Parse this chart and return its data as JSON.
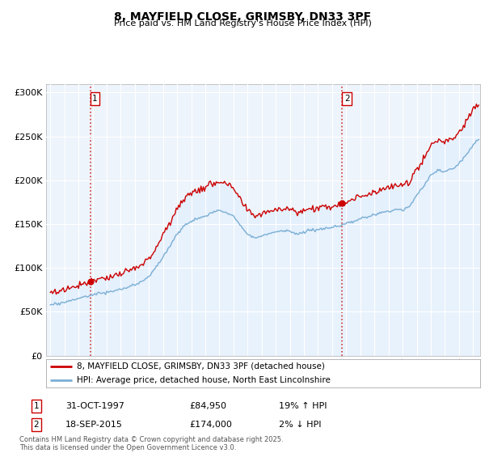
{
  "title": "8, MAYFIELD CLOSE, GRIMSBY, DN33 3PF",
  "subtitle": "Price paid vs. HM Land Registry's House Price Index (HPI)",
  "legend_line1": "8, MAYFIELD CLOSE, GRIMSBY, DN33 3PF (detached house)",
  "legend_line2": "HPI: Average price, detached house, North East Lincolnshire",
  "annotation1_label": "1",
  "annotation1_date": "31-OCT-1997",
  "annotation1_price": "£84,950",
  "annotation1_hpi": "19% ↑ HPI",
  "annotation1_year": 1997.83,
  "annotation1_value": 84950,
  "annotation2_label": "2",
  "annotation2_date": "18-SEP-2015",
  "annotation2_price": "£174,000",
  "annotation2_hpi": "2% ↓ HPI",
  "annotation2_year": 2015.71,
  "annotation2_value": 174000,
  "footer": "Contains HM Land Registry data © Crown copyright and database right 2025.\nThis data is licensed under the Open Government Licence v3.0.",
  "line_color_red": "#cc0000",
  "line_color_blue": "#7bafd4",
  "fill_color_blue": "#ddeeff",
  "vline_color": "#cc0000",
  "dot_color": "#cc0000",
  "ylim": [
    0,
    310000
  ],
  "yticks": [
    0,
    50000,
    100000,
    150000,
    200000,
    250000,
    300000
  ],
  "xlim_left": 1994.7,
  "xlim_right": 2025.5,
  "background_color": "#ffffff",
  "plot_bg_color": "#eef4fb",
  "grid_color": "#ffffff"
}
